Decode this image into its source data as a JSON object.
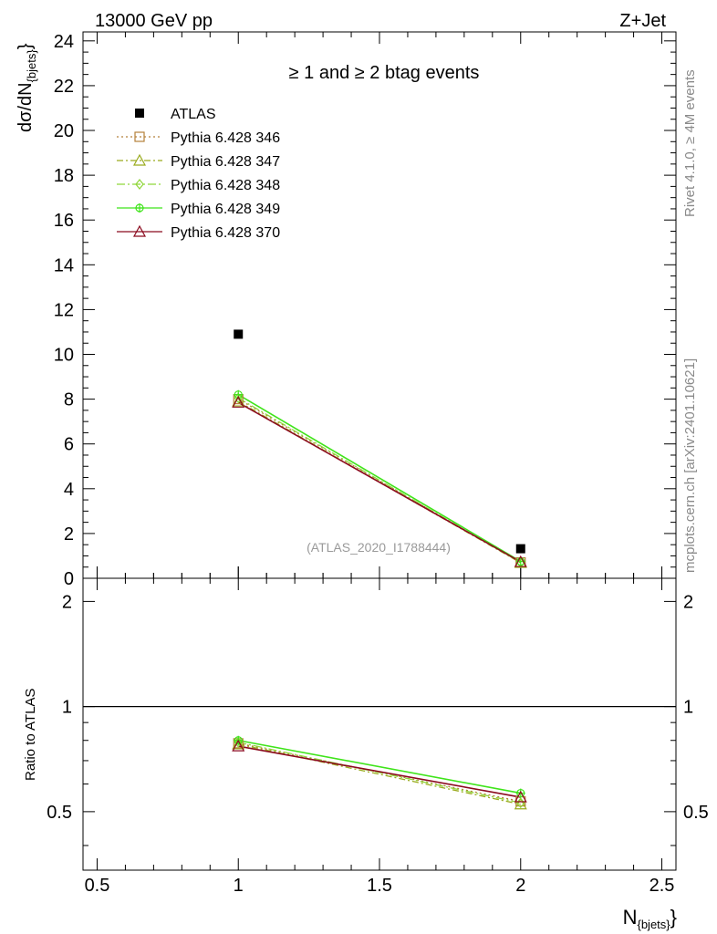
{
  "header": {
    "left_label": "13000 GeV pp",
    "right_label": "Z+Jet"
  },
  "side_text": {
    "rivet": "Rivet 4.1.0, ≥ 4M events",
    "mcplots": "mcplots.cern.ch [arXiv:2401.10621]"
  },
  "chart_data": {
    "type": "line",
    "title": "≥ 1  and ≥ 2 btag events",
    "analysis_tag": "(ATLAS_2020_I1788444)",
    "xlabel": "N",
    "xlabel_sub": "{bjets}",
    "ylabel": "dσ/dN",
    "ylabel_sub": "{bjets}",
    "ratio_ylabel": "Ratio to ATLAS",
    "xlim": [
      0.45,
      2.55
    ],
    "ylim": [
      0,
      24.4
    ],
    "ratio_ylim": [
      0.34,
      2.33
    ],
    "x_ticks": [
      0.5,
      1,
      1.5,
      2,
      2.5
    ],
    "x_tick_labels": [
      "0.5",
      "1",
      "1.5",
      "2",
      "2.5"
    ],
    "y_ticks": [
      0,
      2,
      4,
      6,
      8,
      10,
      12,
      14,
      16,
      18,
      20,
      22,
      24
    ],
    "y_tick_labels": [
      "0",
      "2",
      "4",
      "6",
      "8",
      "10",
      "12",
      "14",
      "16",
      "18",
      "20",
      "22",
      "24"
    ],
    "ratio_ticks": [
      0.5,
      1,
      2
    ],
    "ratio_tick_labels": [
      "0.5",
      "1",
      "2"
    ],
    "x": [
      1,
      2
    ],
    "data_series": {
      "name": "ATLAS",
      "values": [
        10.9,
        1.32
      ],
      "color": "#000000"
    },
    "series": [
      {
        "name": "Pythia 6.428 346",
        "values": [
          8.0,
          0.71
        ],
        "ratio": [
          0.785,
          0.535
        ],
        "color": "#b5803a",
        "dash": "2,3",
        "marker": "square"
      },
      {
        "name": "Pythia 6.428 347",
        "values": [
          7.9,
          0.69
        ],
        "ratio": [
          0.78,
          0.525
        ],
        "color": "#9aab1e",
        "dash": "7,3,2,3",
        "marker": "triangle"
      },
      {
        "name": "Pythia 6.428 348",
        "values": [
          8.05,
          0.7
        ],
        "ratio": [
          0.79,
          0.53
        ],
        "color": "#8fd63a",
        "dash": "9,3,2,3",
        "marker": "diamond"
      },
      {
        "name": "Pythia 6.428 349",
        "values": [
          8.2,
          0.75
        ],
        "ratio": [
          0.8,
          0.565
        ],
        "color": "#3fe41a",
        "dash": "",
        "marker": "circle"
      },
      {
        "name": "Pythia 6.428 370",
        "values": [
          7.85,
          0.73
        ],
        "ratio": [
          0.77,
          0.55
        ],
        "color": "#8b0a1e",
        "dash": "",
        "marker": "triangle"
      }
    ]
  }
}
